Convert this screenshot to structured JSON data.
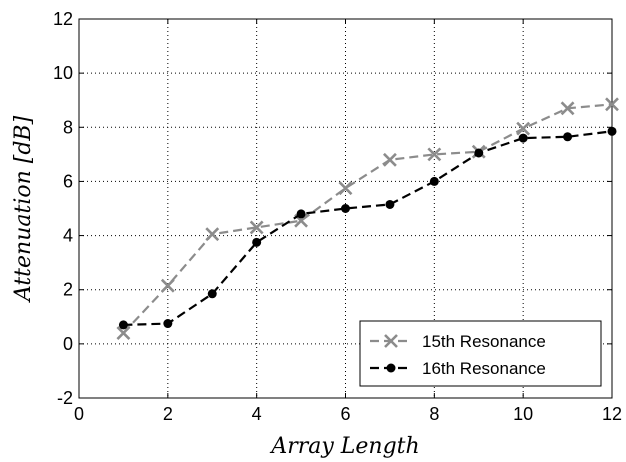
{
  "chart_data": {
    "type": "line",
    "xlabel": "Array Length",
    "ylabel": "Attenuation [dB]",
    "xlim": [
      0,
      12
    ],
    "ylim": [
      -2,
      12
    ],
    "xticks": [
      0,
      2,
      4,
      6,
      8,
      10,
      12
    ],
    "yticks": [
      -2,
      0,
      2,
      4,
      6,
      8,
      10,
      12
    ],
    "grid": true,
    "legend_position": "bottom-right",
    "series": [
      {
        "name": "15th Resonance",
        "color": "#8c8c8c",
        "marker": "x",
        "line_style": "dashed",
        "x": [
          1,
          2,
          3,
          4,
          5,
          6,
          7,
          8,
          9,
          10,
          11,
          12
        ],
        "y": [
          0.4,
          2.15,
          4.05,
          4.3,
          4.55,
          5.75,
          6.8,
          7.0,
          7.1,
          7.95,
          8.7,
          8.85
        ]
      },
      {
        "name": "16th Resonance",
        "color": "#000000",
        "marker": "dot",
        "line_style": "dashed",
        "x": [
          1,
          2,
          3,
          4,
          5,
          6,
          7,
          8,
          9,
          10,
          11,
          12
        ],
        "y": [
          0.7,
          0.75,
          1.85,
          3.75,
          4.8,
          5.0,
          5.15,
          6.0,
          7.05,
          7.6,
          7.65,
          7.85
        ]
      }
    ]
  }
}
